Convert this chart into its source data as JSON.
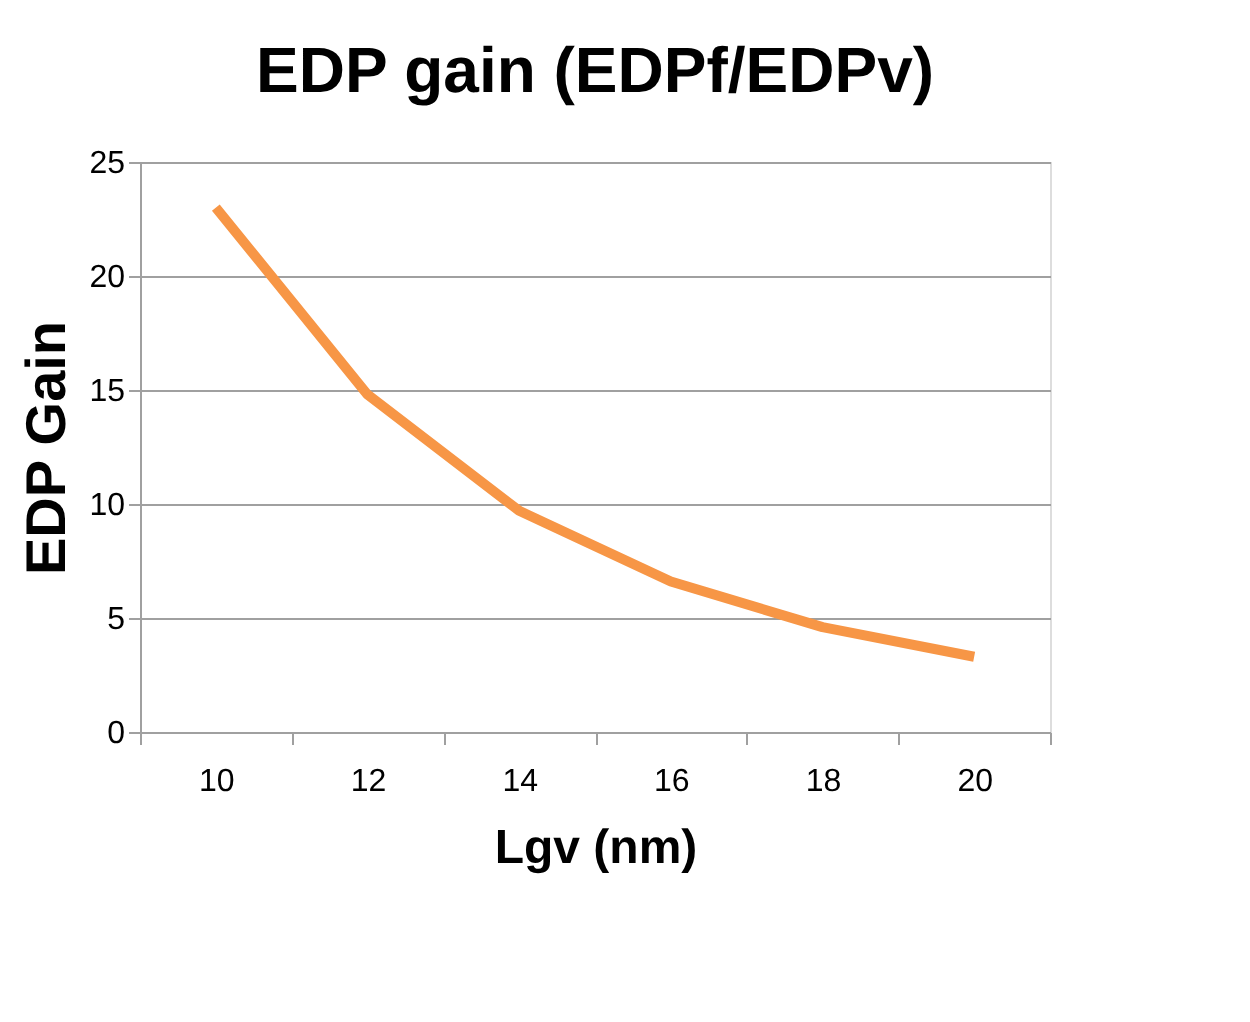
{
  "chart_data": {
    "type": "line",
    "title": "EDP gain (EDPf/EDPv)",
    "xlabel": "Lgv (nm)",
    "ylabel": "EDP Gain",
    "categories": [
      "10",
      "12",
      "14",
      "16",
      "18",
      "20"
    ],
    "series": [
      {
        "color": "#f79646",
        "values": [
          23,
          14.8,
          9.7,
          6.6,
          4.6,
          3.3
        ]
      }
    ],
    "ylim": [
      0,
      25
    ],
    "yticks": [
      0,
      5,
      10,
      15,
      20,
      25
    ],
    "grid": "y",
    "marker": "none",
    "line_style": "solid"
  }
}
